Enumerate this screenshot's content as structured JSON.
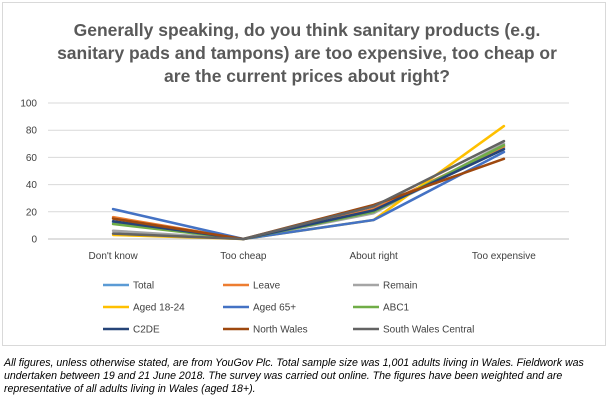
{
  "chart_data": {
    "type": "line",
    "title": "Generally speaking, do you think sanitary products (e.g. sanitary pads and tampons) are too expensive, too cheap or are the current prices about right?",
    "categories": [
      "Don't know",
      "Too cheap",
      "About right",
      "Too expensive"
    ],
    "ylim": [
      0,
      100
    ],
    "yticks": [
      "0",
      "20",
      "40",
      "60",
      "80",
      "100"
    ],
    "grid": true,
    "legend_position": "bottom",
    "series": [
      {
        "name": "Total",
        "color": "#5b9bd5",
        "values": [
          12,
          0,
          20,
          67
        ]
      },
      {
        "name": "Leave",
        "color": "#ed7d31",
        "values": [
          16,
          0,
          22,
          68
        ]
      },
      {
        "name": "Remain",
        "color": "#a5a5a5",
        "values": [
          6,
          0,
          19,
          70
        ]
      },
      {
        "name": "Aged 18-24",
        "color": "#ffc000",
        "values": [
          3,
          0,
          14,
          83
        ]
      },
      {
        "name": "Aged 65+",
        "color": "#4472c4",
        "values": [
          22,
          0,
          14,
          64
        ]
      },
      {
        "name": "ABC1",
        "color": "#70ad47",
        "values": [
          11,
          0,
          20,
          69
        ]
      },
      {
        "name": "C2DE",
        "color": "#264478",
        "values": [
          13,
          0,
          21,
          66
        ]
      },
      {
        "name": "North Wales",
        "color": "#9e480e",
        "values": [
          15,
          0,
          25,
          59
        ]
      },
      {
        "name": "South Wales Central",
        "color": "#636363",
        "values": [
          4,
          0,
          24,
          72
        ]
      }
    ]
  },
  "footnote": "All figures, unless otherwise stated, are from YouGov Plc.  Total sample size was 1,001 adults living in Wales. Fieldwork was undertaken between 19 and 21 June 2018.  The survey was carried out online. The figures have been weighted and are representative of all adults living in Wales (aged 18+)."
}
